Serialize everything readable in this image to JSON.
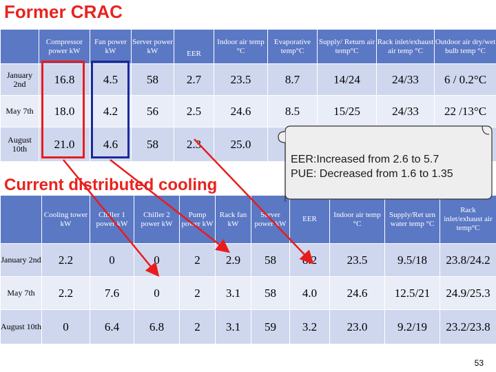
{
  "title_former": "Former CRAC",
  "title_current": "Current distributed cooling",
  "table1": {
    "headers": [
      "",
      "Compressor power kW",
      "Fan power kW",
      "Server power kW",
      "EER",
      "Indoor air temp °C",
      "Evaporative temp°C",
      "Supply/ Return air temp°C",
      "Rack inlet/exhaust air temp °C",
      "Outdoor air dry/wet bulb temp °C"
    ],
    "rows": [
      [
        "January 2nd",
        "16.8",
        "4.5",
        "58",
        "2.7",
        "23.5",
        "8.7",
        "14/24",
        "24/33",
        "6 / 0.2°C"
      ],
      [
        "May 7th",
        "18.0",
        "4.2",
        "56",
        "2.5",
        "24.6",
        "8.5",
        "15/25",
        "24/33",
        "22 /13°C"
      ],
      [
        "August 10th",
        "21.0",
        "4.6",
        "58",
        "2.3",
        "25.0",
        "",
        "",
        "",
        ""
      ]
    ]
  },
  "table2": {
    "headers": [
      "",
      "Cooling tower kW",
      "Chiller 1 power kW",
      "Chiller 2 power kW",
      "Pump power kW",
      "Rack fan kW",
      "Server power kW",
      "EER",
      "Indoor air temp °C",
      "Supply/Ret urn water temp °C",
      "Rack inlet/exhaust air temp°C"
    ],
    "rows": [
      [
        "January 2nd",
        "2.2",
        "0",
        "0",
        "2",
        "2.9",
        "58",
        "8.2",
        "23.5",
        "9.5/18",
        "23.8/24.2"
      ],
      [
        "May 7th",
        "2.2",
        "7.6",
        "0",
        "2",
        "3.1",
        "58",
        "4.0",
        "24.6",
        "12.5/21",
        "24.9/25.3"
      ],
      [
        "August 10th",
        "0",
        "6.4",
        "6.8",
        "2",
        "3.1",
        "59",
        "3.2",
        "23.0",
        "9.2/19",
        "23.2/23.8"
      ]
    ]
  },
  "callout": {
    "eer_text": "EER:Increased from 2.6 to 5.7",
    "pue_text": "PUE: Decreased from 1.6 to 1.35"
  },
  "page_number": "53",
  "colors": {
    "header": "#5b78c4",
    "row_a": "#cfd7ee",
    "row_b": "#e9edf7",
    "title": "#e8231f",
    "arrow": "#e81c1c",
    "box_blue": "#1a2a9a"
  }
}
